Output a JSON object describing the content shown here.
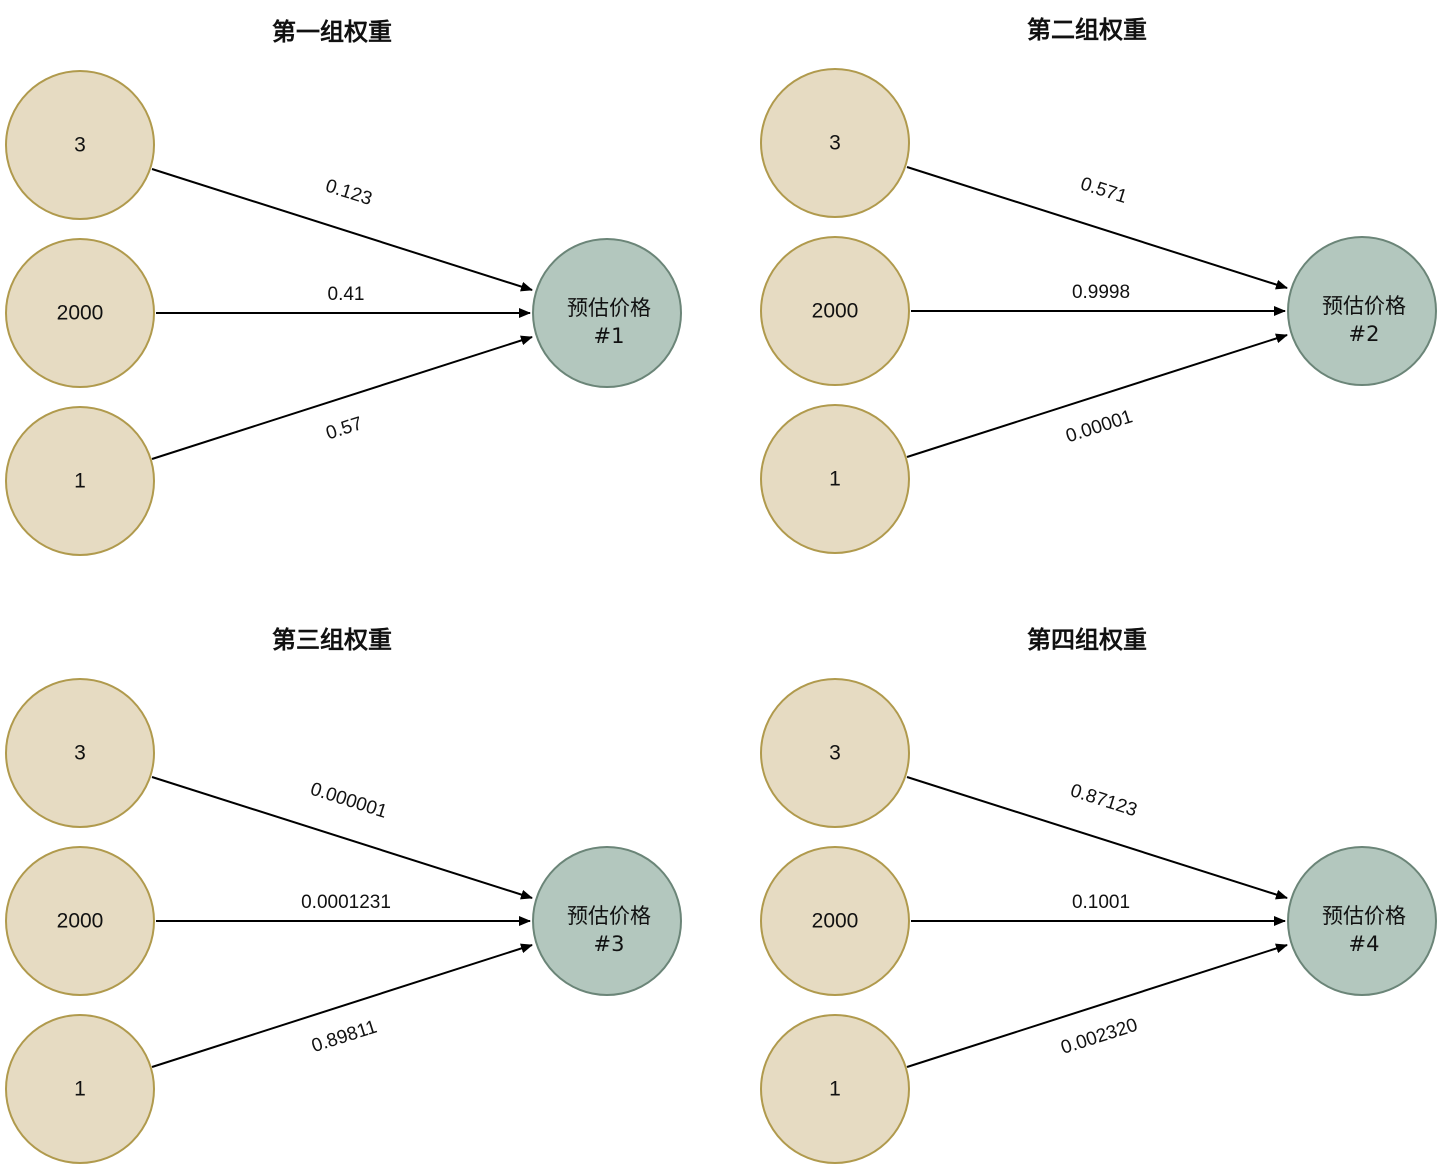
{
  "colors": {
    "input_fill": "#e6dbc2",
    "input_stroke": "#b09a4d",
    "output_fill": "#b3c7be",
    "output_stroke": "#6b8578",
    "edge": "#000000"
  },
  "groups": [
    {
      "title": "第一组权重",
      "inputs": [
        "3",
        "2000",
        "1"
      ],
      "output_line1": "预估价格",
      "output_line2": "#1",
      "weights": [
        "0.123",
        "0.41",
        "0.57"
      ]
    },
    {
      "title": "第二组权重",
      "inputs": [
        "3",
        "2000",
        "1"
      ],
      "output_line1": "预估价格",
      "output_line2": "#2",
      "weights": [
        "0.571",
        "0.9998",
        "0.00001"
      ]
    },
    {
      "title": "第三组权重",
      "inputs": [
        "3",
        "2000",
        "1"
      ],
      "output_line1": "预估价格",
      "output_line2": "#3",
      "weights": [
        "0.000001",
        "0.0001231",
        "0.89811"
      ]
    },
    {
      "title": "第四组权重",
      "inputs": [
        "3",
        "2000",
        "1"
      ],
      "output_line1": "预估价格",
      "output_line2": "#4",
      "weights": [
        "0.87123",
        "0.1001",
        "0.002320"
      ]
    }
  ]
}
